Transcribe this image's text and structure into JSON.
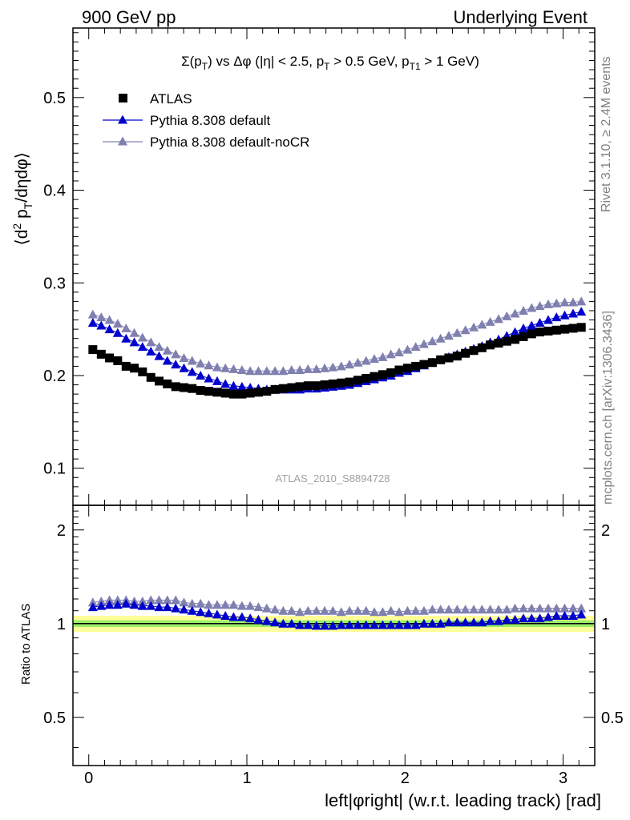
{
  "header": {
    "left": "900 GeV pp",
    "right": "Underlying Event"
  },
  "side_labels": {
    "rivet": "Rivet 3.1.10, ≥ 2.4M events",
    "mcplots": "mcplots.cern.ch [arXiv:1306.3436]"
  },
  "watermark": "ATLAS_2010_S8894728",
  "chart_data": [
    {
      "type": "scatter",
      "panel": "main",
      "title": "Σ(p_T) vs Δφ (|η| < 2.5, p_T > 0.5 GeV, p_T1 > 1 GeV)",
      "ylabel": "⟨d² p_T/dηdφ⟩",
      "xlim": [
        -0.1,
        3.2
      ],
      "ylim": [
        0.06,
        0.575
      ],
      "y_ticks": [
        0.1,
        0.2,
        0.3,
        0.4,
        0.5
      ],
      "legend_position": "top-left",
      "x": [
        0.026,
        0.079,
        0.131,
        0.183,
        0.236,
        0.288,
        0.34,
        0.393,
        0.445,
        0.497,
        0.55,
        0.602,
        0.654,
        0.707,
        0.759,
        0.812,
        0.864,
        0.916,
        0.969,
        1.021,
        1.073,
        1.126,
        1.178,
        1.23,
        1.283,
        1.335,
        1.387,
        1.44,
        1.492,
        1.544,
        1.597,
        1.649,
        1.702,
        1.754,
        1.806,
        1.859,
        1.911,
        1.963,
        2.016,
        2.068,
        2.12,
        2.173,
        2.225,
        2.277,
        2.33,
        2.382,
        2.435,
        2.487,
        2.539,
        2.592,
        2.644,
        2.696,
        2.749,
        2.801,
        2.853,
        2.906,
        2.958,
        3.01,
        3.063,
        3.115
      ],
      "series": [
        {
          "name": "ATLAS",
          "color": "#000000",
          "marker": "square",
          "values": [
            0.228,
            0.223,
            0.219,
            0.216,
            0.21,
            0.208,
            0.204,
            0.198,
            0.194,
            0.191,
            0.188,
            0.187,
            0.186,
            0.184,
            0.183,
            0.182,
            0.181,
            0.18,
            0.18,
            0.181,
            0.182,
            0.183,
            0.185,
            0.186,
            0.187,
            0.188,
            0.189,
            0.189,
            0.19,
            0.191,
            0.192,
            0.193,
            0.195,
            0.197,
            0.199,
            0.201,
            0.203,
            0.206,
            0.208,
            0.21,
            0.212,
            0.214,
            0.217,
            0.219,
            0.221,
            0.224,
            0.227,
            0.23,
            0.233,
            0.235,
            0.237,
            0.239,
            0.242,
            0.245,
            0.247,
            0.248,
            0.249,
            0.25,
            0.251,
            0.252
          ]
        },
        {
          "name": "Pythia 8.308 default",
          "color": "#0000cc",
          "marker": "triangle",
          "values": [
            0.257,
            0.254,
            0.25,
            0.246,
            0.24,
            0.236,
            0.231,
            0.226,
            0.221,
            0.216,
            0.212,
            0.208,
            0.204,
            0.2,
            0.197,
            0.194,
            0.191,
            0.189,
            0.188,
            0.187,
            0.186,
            0.185,
            0.185,
            0.185,
            0.185,
            0.185,
            0.186,
            0.186,
            0.187,
            0.188,
            0.189,
            0.19,
            0.192,
            0.194,
            0.196,
            0.198,
            0.2,
            0.203,
            0.205,
            0.208,
            0.211,
            0.214,
            0.217,
            0.22,
            0.223,
            0.226,
            0.229,
            0.232,
            0.236,
            0.239,
            0.243,
            0.247,
            0.251,
            0.254,
            0.257,
            0.26,
            0.263,
            0.265,
            0.267,
            0.269
          ]
        },
        {
          "name": "Pythia 8.308 default-noCR",
          "color": "#8080b0",
          "marker": "triangle",
          "values": [
            0.266,
            0.263,
            0.26,
            0.256,
            0.251,
            0.246,
            0.241,
            0.236,
            0.231,
            0.227,
            0.223,
            0.219,
            0.216,
            0.213,
            0.211,
            0.209,
            0.208,
            0.207,
            0.206,
            0.205,
            0.205,
            0.205,
            0.205,
            0.205,
            0.206,
            0.206,
            0.207,
            0.207,
            0.208,
            0.209,
            0.21,
            0.212,
            0.214,
            0.216,
            0.218,
            0.22,
            0.223,
            0.225,
            0.228,
            0.231,
            0.234,
            0.237,
            0.24,
            0.243,
            0.246,
            0.249,
            0.252,
            0.255,
            0.258,
            0.261,
            0.264,
            0.267,
            0.27,
            0.273,
            0.275,
            0.277,
            0.278,
            0.279,
            0.279,
            0.28
          ]
        }
      ]
    },
    {
      "type": "scatter",
      "panel": "ratio",
      "xlabel": "left|φright| (w.r.t. leading track) [rad]",
      "ylabel": "Ratio to ATLAS",
      "xlim": [
        -0.1,
        3.2
      ],
      "ylim": [
        0.35,
        2.4
      ],
      "log_y": true,
      "x_ticks": [
        0,
        1,
        2,
        3
      ],
      "y_ticks": [
        0.5,
        1,
        2
      ],
      "reference_line": 1.0,
      "bands": [
        {
          "name": "total uncertainty",
          "color": "#ffff99",
          "lo": 0.94,
          "hi": 1.06
        },
        {
          "name": "statistical uncertainty",
          "color": "#99ee66",
          "lo": 0.975,
          "hi": 1.025
        }
      ],
      "series": [
        {
          "name": "Pythia 8.308 default",
          "color": "#0000cc",
          "marker": "triangle",
          "values": [
            1.13,
            1.14,
            1.15,
            1.15,
            1.16,
            1.15,
            1.14,
            1.14,
            1.13,
            1.13,
            1.12,
            1.11,
            1.1,
            1.09,
            1.08,
            1.07,
            1.06,
            1.05,
            1.05,
            1.04,
            1.03,
            1.02,
            1.01,
            1.0,
            1.0,
            0.99,
            0.99,
            0.985,
            0.985,
            0.985,
            0.99,
            0.99,
            0.99,
            0.99,
            0.99,
            0.99,
            0.99,
            0.99,
            0.99,
            0.99,
            1.0,
            1.0,
            1.0,
            1.01,
            1.01,
            1.01,
            1.01,
            1.01,
            1.02,
            1.02,
            1.03,
            1.03,
            1.04,
            1.04,
            1.04,
            1.05,
            1.06,
            1.06,
            1.06,
            1.07
          ]
        },
        {
          "name": "Pythia 8.308 default-noCR",
          "color": "#8080b0",
          "marker": "triangle",
          "values": [
            1.17,
            1.18,
            1.19,
            1.19,
            1.19,
            1.18,
            1.18,
            1.19,
            1.19,
            1.19,
            1.19,
            1.17,
            1.16,
            1.16,
            1.15,
            1.15,
            1.15,
            1.15,
            1.14,
            1.14,
            1.13,
            1.12,
            1.11,
            1.1,
            1.1,
            1.09,
            1.1,
            1.1,
            1.1,
            1.1,
            1.09,
            1.1,
            1.1,
            1.1,
            1.09,
            1.09,
            1.1,
            1.09,
            1.1,
            1.1,
            1.1,
            1.11,
            1.11,
            1.11,
            1.11,
            1.11,
            1.11,
            1.11,
            1.11,
            1.11,
            1.11,
            1.12,
            1.12,
            1.12,
            1.12,
            1.12,
            1.12,
            1.12,
            1.12,
            1.12
          ]
        }
      ]
    }
  ]
}
